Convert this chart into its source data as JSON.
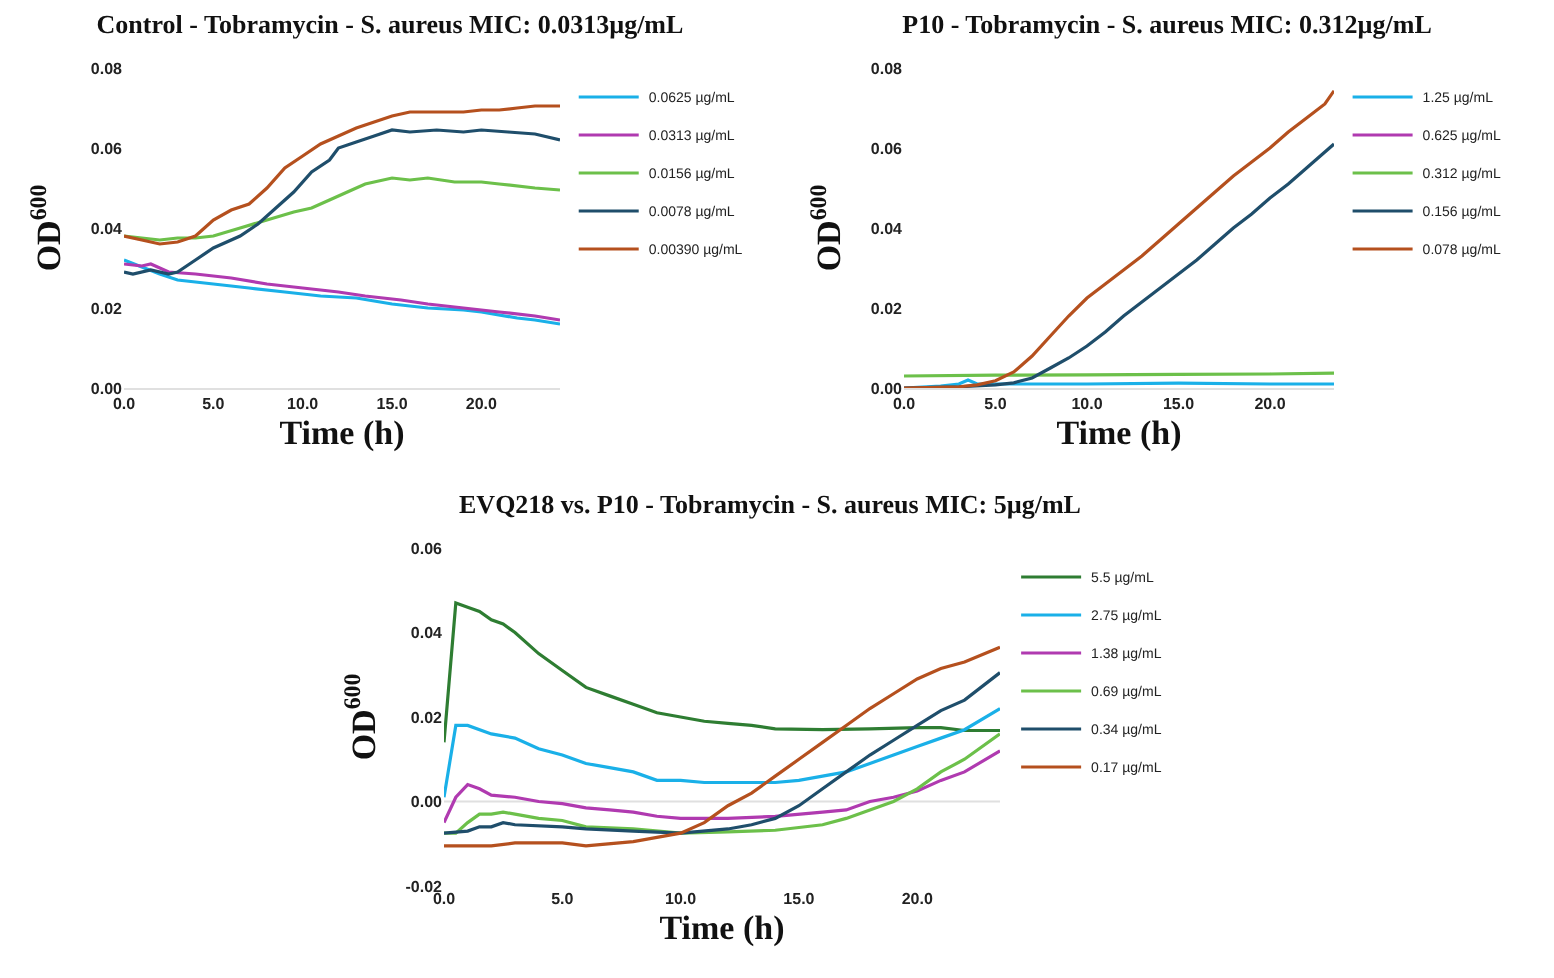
{
  "chart_data": [
    {
      "type": "line",
      "title": "Control - Tobramycin - S. aureus MIC: 0.0313µg/mL",
      "xlabel": "Time (h)",
      "ylabel": "OD$^{600}$",
      "xlim": [
        0,
        24.4
      ],
      "ylim": [
        0,
        0.08
      ],
      "xticks": [
        {
          "value": 0,
          "label": "0.0"
        },
        {
          "value": 5,
          "label": "5.0"
        },
        {
          "value": 10,
          "label": "10.0"
        },
        {
          "value": 15,
          "label": "15.0"
        },
        {
          "value": 20,
          "label": "20.0"
        }
      ],
      "yticks": [
        {
          "value": 0,
          "label": "0.00"
        },
        {
          "value": 0.02,
          "label": "0.02"
        },
        {
          "value": 0.04,
          "label": "0.04"
        },
        {
          "value": 0.06,
          "label": "0.06"
        },
        {
          "value": 0.08,
          "label": "0.08"
        }
      ],
      "legend": "right",
      "grid": false,
      "marker": "none",
      "line_style": "solid",
      "series": [
        {
          "name": "0.0625 µg/mL",
          "color": "#1ab0e8",
          "x": [
            0,
            2,
            3,
            5,
            7,
            9,
            11,
            13,
            15,
            17,
            19,
            20,
            22,
            23,
            24.4
          ],
          "values": [
            0.032,
            0.0285,
            0.027,
            0.026,
            0.025,
            0.024,
            0.023,
            0.0225,
            0.021,
            0.02,
            0.0195,
            0.019,
            0.0175,
            0.017,
            0.016
          ]
        },
        {
          "name": "0.0313 µg/mL",
          "color": "#b03ab0",
          "x": [
            0,
            1,
            1.5,
            2.5,
            4,
            6,
            8,
            10,
            12,
            13.5,
            15.5,
            17,
            19,
            21,
            23,
            24.4
          ],
          "values": [
            0.031,
            0.0305,
            0.031,
            0.029,
            0.0285,
            0.0275,
            0.026,
            0.025,
            0.024,
            0.023,
            0.022,
            0.021,
            0.02,
            0.019,
            0.018,
            0.017
          ]
        },
        {
          "name": "0.0156 µg/mL",
          "color": "#6cc04a",
          "x": [
            0,
            1,
            2,
            3,
            4,
            5,
            6.5,
            8,
            9.5,
            10.5,
            11.5,
            12.5,
            13.5,
            15,
            16,
            17,
            18.5,
            20,
            21,
            23,
            24.4
          ],
          "values": [
            0.038,
            0.0375,
            0.037,
            0.0375,
            0.0375,
            0.038,
            0.04,
            0.042,
            0.044,
            0.045,
            0.047,
            0.049,
            0.051,
            0.0525,
            0.052,
            0.0525,
            0.0515,
            0.0515,
            0.051,
            0.05,
            0.0495
          ]
        },
        {
          "name": "0.0078 µg/mL",
          "color": "#1f4e6b",
          "x": [
            0,
            0.5,
            1.5,
            2.5,
            3,
            4,
            5,
            6.5,
            7.5,
            8.5,
            9.5,
            10.5,
            11.5,
            12,
            13,
            14,
            15,
            16,
            17.5,
            19,
            20,
            21.5,
            23,
            24.4
          ],
          "values": [
            0.029,
            0.0285,
            0.0295,
            0.0285,
            0.029,
            0.032,
            0.035,
            0.038,
            0.041,
            0.045,
            0.049,
            0.054,
            0.057,
            0.06,
            0.0615,
            0.063,
            0.0645,
            0.064,
            0.0645,
            0.064,
            0.0645,
            0.064,
            0.0635,
            0.062
          ]
        },
        {
          "name": "0.00390 µg/mL",
          "color": "#b5501e",
          "x": [
            0,
            1,
            2,
            3,
            4,
            5,
            6,
            7,
            8,
            9,
            10,
            11,
            12,
            13,
            14,
            15,
            16,
            17,
            18,
            19,
            20,
            21,
            22,
            23,
            24.4
          ],
          "values": [
            0.038,
            0.037,
            0.036,
            0.0365,
            0.038,
            0.042,
            0.0445,
            0.046,
            0.05,
            0.055,
            0.058,
            0.061,
            0.063,
            0.065,
            0.0665,
            0.068,
            0.069,
            0.069,
            0.069,
            0.069,
            0.0695,
            0.0695,
            0.07,
            0.0705,
            0.0705
          ]
        }
      ]
    },
    {
      "type": "line",
      "title": "P10 - Tobramycin - S. aureus MIC: 0.312µg/mL",
      "xlabel": "Time (h)",
      "ylabel": "OD$^{600}$",
      "xlim": [
        0,
        23.5
      ],
      "ylim": [
        0,
        0.08
      ],
      "xticks": [
        {
          "value": 0,
          "label": "0.0"
        },
        {
          "value": 5,
          "label": "5.0"
        },
        {
          "value": 10,
          "label": "10.0"
        },
        {
          "value": 15,
          "label": "15.0"
        },
        {
          "value": 20,
          "label": "20.0"
        }
      ],
      "yticks": [
        {
          "value": 0,
          "label": "0.00"
        },
        {
          "value": 0.02,
          "label": "0.02"
        },
        {
          "value": 0.04,
          "label": "0.04"
        },
        {
          "value": 0.06,
          "label": "0.06"
        },
        {
          "value": 0.08,
          "label": "0.08"
        }
      ],
      "legend": "right",
      "grid": false,
      "marker": "none",
      "line_style": "solid",
      "series": [
        {
          "name": "1.25 µg/mL",
          "color": "#1ab0e8",
          "x": [
            0,
            2,
            3,
            3.5,
            4,
            6,
            10,
            15,
            20,
            23.5
          ],
          "values": [
            0,
            0.0005,
            0.001,
            0.002,
            0.001,
            0.001,
            0.001,
            0.0012,
            0.001,
            0.001
          ]
        },
        {
          "name": "0.625 µg/mL",
          "color": "#b03ab0",
          "values": [
            null
          ]
        },
        {
          "name": "0.312 µg/mL",
          "color": "#6cc04a",
          "x": [
            0,
            5,
            10,
            15,
            20,
            23.5
          ],
          "values": [
            0.003,
            0.0032,
            0.0033,
            0.0034,
            0.0035,
            0.0037
          ]
        },
        {
          "name": "0.156 µg/mL",
          "color": "#1f4e6b",
          "x": [
            0,
            3,
            5,
            6,
            7,
            8,
            9,
            10,
            11,
            12,
            13,
            14,
            15,
            16,
            17,
            18,
            19,
            20,
            21,
            22,
            23,
            23.5
          ],
          "values": [
            0,
            0.0003,
            0.0008,
            0.0013,
            0.0025,
            0.005,
            0.0075,
            0.0105,
            0.014,
            0.018,
            0.0215,
            0.025,
            0.0285,
            0.032,
            0.036,
            0.04,
            0.0435,
            0.0475,
            0.051,
            0.055,
            0.059,
            0.061
          ]
        },
        {
          "name": "0.078 µg/mL",
          "color": "#b5501e",
          "x": [
            0,
            3,
            4,
            5,
            6,
            7,
            8,
            9,
            10,
            11,
            12,
            13,
            14,
            15,
            16,
            17,
            18,
            19,
            20,
            21,
            22,
            23,
            23.5
          ],
          "values": [
            0,
            0.0003,
            0.0008,
            0.0018,
            0.004,
            0.008,
            0.013,
            0.018,
            0.0225,
            0.026,
            0.0295,
            0.033,
            0.037,
            0.041,
            0.045,
            0.049,
            0.053,
            0.0565,
            0.06,
            0.064,
            0.0675,
            0.071,
            0.0743
          ]
        }
      ]
    },
    {
      "type": "line",
      "title": "EVQ218 vs. P10 - Tobramycin - S. aureus MIC: 5µg/mL",
      "xlabel": "Time (h)",
      "ylabel": "OD$^{600}$",
      "xlim": [
        0,
        23.5
      ],
      "ylim": [
        -0.02,
        0.06
      ],
      "xticks": [
        {
          "value": 0,
          "label": "0.0"
        },
        {
          "value": 5,
          "label": "5.0"
        },
        {
          "value": 10,
          "label": "10.0"
        },
        {
          "value": 15,
          "label": "15.0"
        },
        {
          "value": 20,
          "label": "20.0"
        }
      ],
      "yticks": [
        {
          "value": -0.02,
          "label": "-0.02"
        },
        {
          "value": 0,
          "label": "0.00"
        },
        {
          "value": 0.02,
          "label": "0.02"
        },
        {
          "value": 0.04,
          "label": "0.04"
        },
        {
          "value": 0.06,
          "label": "0.06"
        }
      ],
      "legend": "right",
      "grid": false,
      "marker": "none",
      "line_style": "solid",
      "ref_lines": [
        {
          "axis": "y",
          "value": 0,
          "color": "#e0e0e0"
        }
      ],
      "series": [
        {
          "name": "5.5 µg/mL",
          "color": "#2e7d32",
          "x": [
            0,
            0.5,
            1,
            1.5,
            2,
            2.5,
            3,
            4,
            5,
            6,
            7,
            8,
            9,
            10,
            11,
            12,
            13,
            14,
            16,
            18,
            20,
            21,
            22,
            23.5
          ],
          "values": [
            0.014,
            0.047,
            0.046,
            0.045,
            0.043,
            0.042,
            0.04,
            0.035,
            0.031,
            0.027,
            0.025,
            0.023,
            0.021,
            0.02,
            0.019,
            0.0185,
            0.018,
            0.0172,
            0.017,
            0.0172,
            0.0175,
            0.0175,
            0.0168,
            0.0168
          ]
        },
        {
          "name": "2.75 µg/mL",
          "color": "#1ab0e8",
          "x": [
            0,
            0.5,
            1,
            2,
            3,
            4,
            5,
            6,
            7,
            8,
            9,
            10,
            11,
            12,
            13,
            14,
            15,
            16,
            17,
            18,
            19,
            20,
            21,
            22,
            23.5
          ],
          "values": [
            0.001,
            0.018,
            0.018,
            0.016,
            0.015,
            0.0125,
            0.011,
            0.009,
            0.008,
            0.007,
            0.005,
            0.005,
            0.0045,
            0.0045,
            0.0045,
            0.0045,
            0.005,
            0.006,
            0.007,
            0.009,
            0.011,
            0.013,
            0.015,
            0.017,
            0.022
          ]
        },
        {
          "name": "1.38 µg/mL",
          "color": "#b03ab0",
          "x": [
            0,
            0.5,
            1,
            1.5,
            2,
            3,
            4,
            5,
            6,
            7,
            8,
            9,
            10,
            12,
            14,
            16,
            17,
            18,
            19,
            20,
            21,
            22,
            23.5
          ],
          "values": [
            -0.005,
            0.001,
            0.004,
            0.003,
            0.0015,
            0.001,
            0,
            -0.0005,
            -0.0015,
            -0.002,
            -0.0025,
            -0.0035,
            -0.004,
            -0.004,
            -0.0035,
            -0.0025,
            -0.002,
            0,
            0.001,
            0.0025,
            0.005,
            0.007,
            0.012
          ]
        },
        {
          "name": "0.69 µg/mL",
          "color": "#6cc04a",
          "x": [
            0,
            0.5,
            1,
            1.5,
            2,
            2.5,
            3,
            4,
            5,
            6,
            8,
            10,
            12,
            14,
            16,
            17,
            18,
            19,
            20,
            21,
            22,
            23.5
          ],
          "values": [
            -0.0075,
            -0.0075,
            -0.005,
            -0.003,
            -0.003,
            -0.0025,
            -0.003,
            -0.004,
            -0.0045,
            -0.006,
            -0.0065,
            -0.0075,
            -0.0072,
            -0.0068,
            -0.0055,
            -0.004,
            -0.002,
            0,
            0.003,
            0.007,
            0.01,
            0.016
          ]
        },
        {
          "name": "0.34 µg/mL",
          "color": "#1f4e6b",
          "x": [
            0,
            1,
            1.5,
            2,
            2.5,
            3,
            5,
            6,
            8,
            10,
            12,
            13,
            14,
            15,
            16,
            17,
            18,
            19,
            20,
            21,
            22,
            23.5
          ],
          "values": [
            -0.0075,
            -0.007,
            -0.006,
            -0.006,
            -0.005,
            -0.0055,
            -0.006,
            -0.0065,
            -0.007,
            -0.0075,
            -0.0065,
            -0.0055,
            -0.004,
            -0.001,
            0.003,
            0.007,
            0.011,
            0.0145,
            0.018,
            0.0215,
            0.024,
            0.0305
          ]
        },
        {
          "name": "0.17 µg/mL",
          "color": "#b5501e",
          "x": [
            0,
            2,
            3,
            5,
            6,
            8,
            9,
            10,
            11,
            12,
            13,
            14,
            15,
            16,
            17,
            18,
            19,
            20,
            21,
            22,
            23.5
          ],
          "values": [
            -0.0105,
            -0.0105,
            -0.0098,
            -0.0098,
            -0.0105,
            -0.0095,
            -0.0085,
            -0.0075,
            -0.005,
            -0.001,
            0.002,
            0.006,
            0.01,
            0.014,
            0.018,
            0.022,
            0.0255,
            0.029,
            0.0315,
            0.033,
            0.0365
          ]
        }
      ]
    }
  ]
}
